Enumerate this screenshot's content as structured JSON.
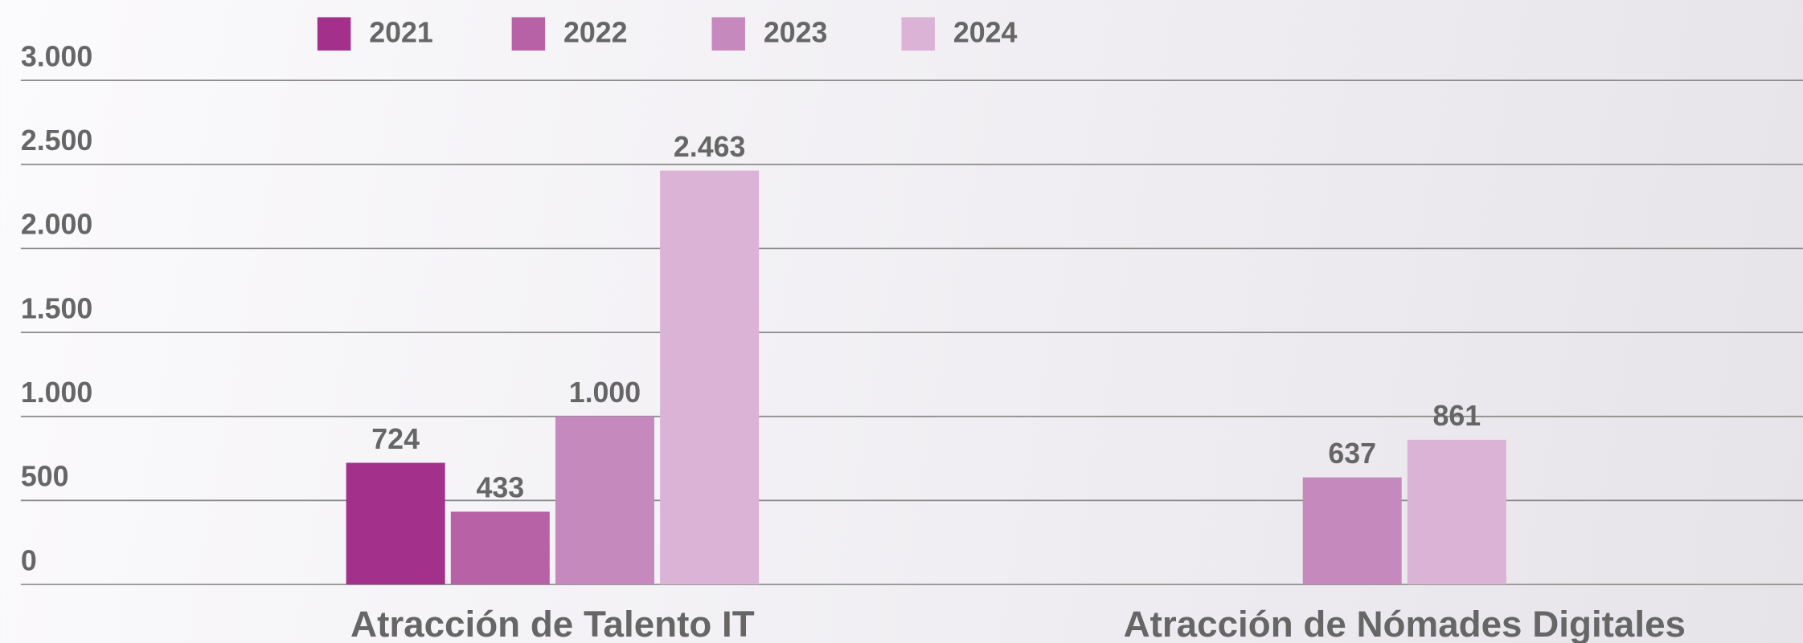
{
  "chart_data": {
    "type": "bar",
    "categories": [
      "Atracción de Talento IT",
      "Atracción de Nómades Digitales"
    ],
    "series": [
      {
        "name": "2021",
        "color": "#a3318b",
        "values": [
          724,
          null
        ]
      },
      {
        "name": "2022",
        "color": "#b762a6",
        "values": [
          433,
          null
        ]
      },
      {
        "name": "2023",
        "color": "#c689bd",
        "values": [
          1000,
          637
        ],
        "value_labels": [
          "1.000",
          "637"
        ]
      },
      {
        "name": "2024",
        "color": "#dab3d6",
        "values": [
          2463,
          861
        ],
        "value_labels": [
          "2.463",
          "861"
        ]
      }
    ],
    "ylim": [
      0,
      3000
    ],
    "yticks": [
      0,
      500,
      {
        "value": 1000,
        "label": "1.000"
      },
      {
        "value": 1500,
        "label": "1.500"
      },
      {
        "value": 2000,
        "label": "2.000"
      },
      {
        "value": 2500,
        "label": "2.500"
      },
      {
        "value": 3000,
        "label": "3.000"
      }
    ],
    "grid": true,
    "legend": "top"
  }
}
